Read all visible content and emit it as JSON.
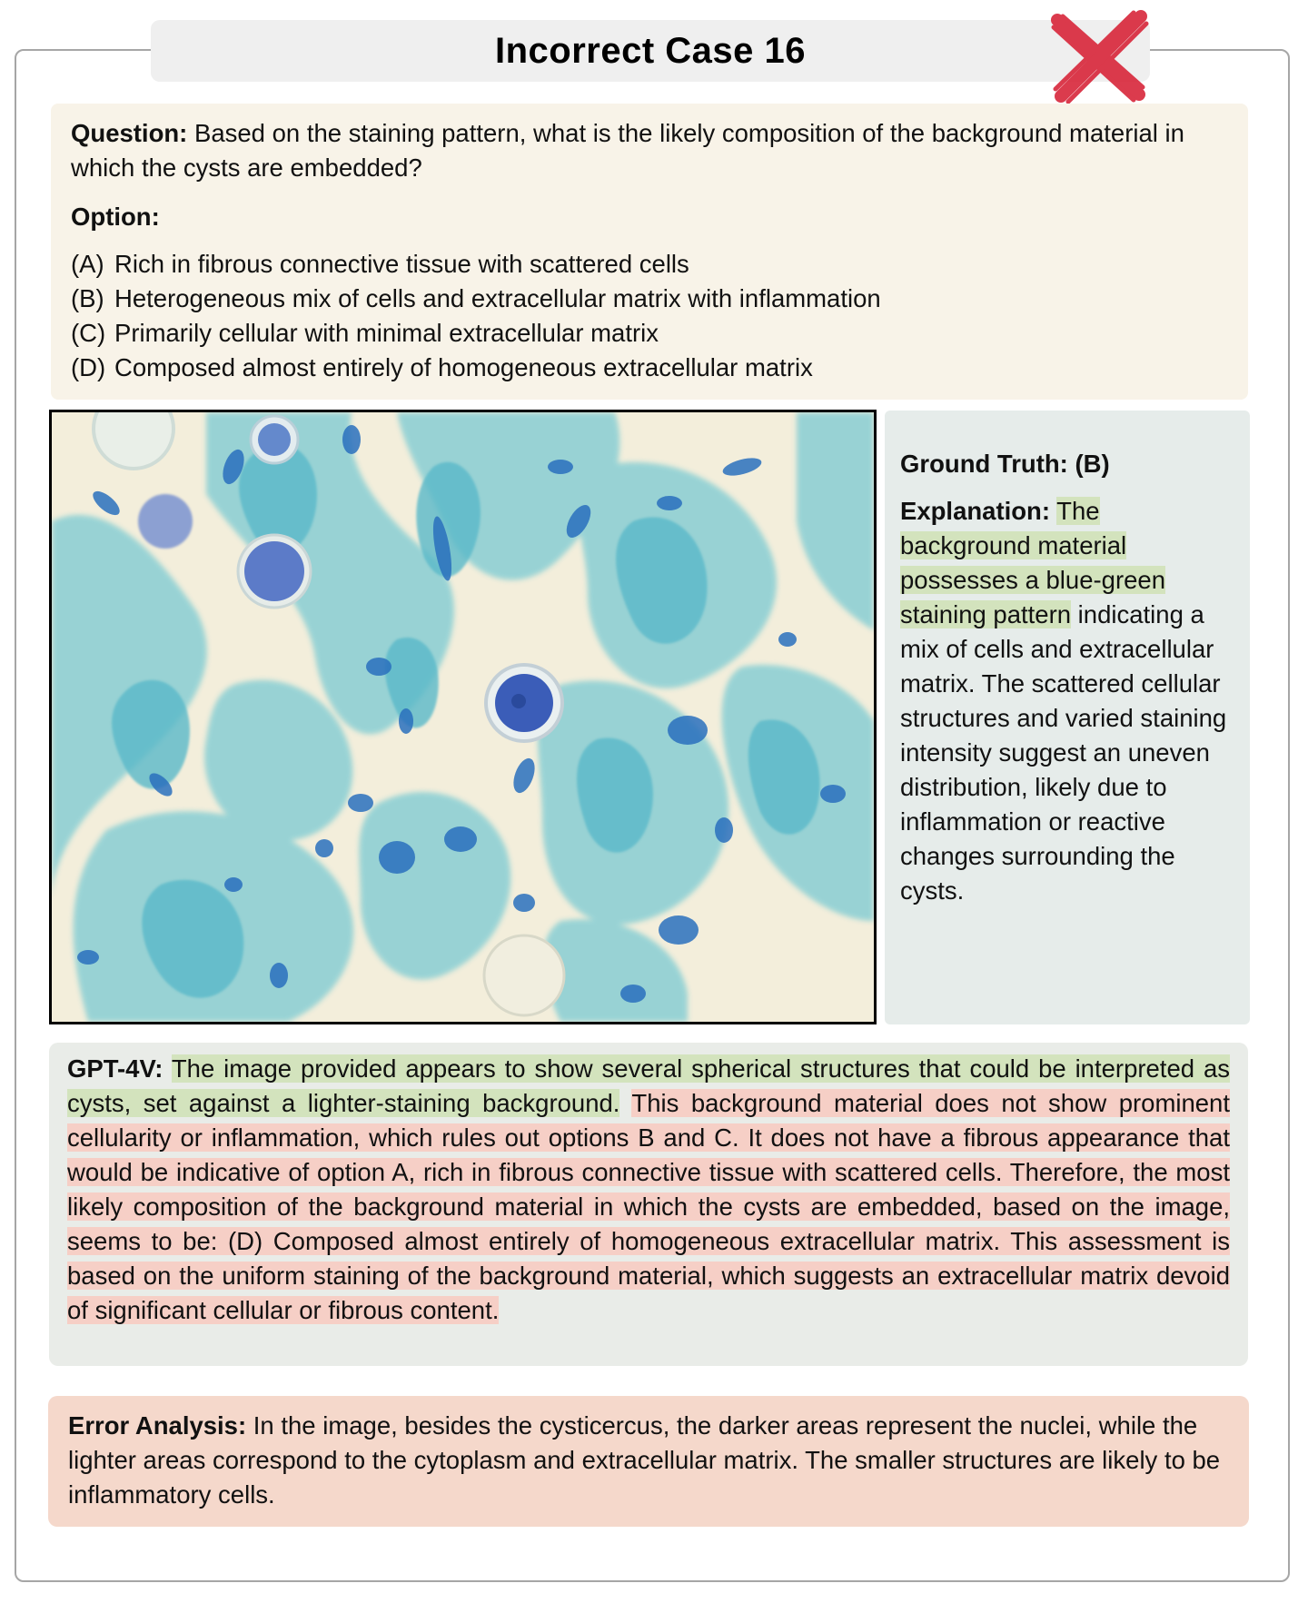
{
  "title": "Incorrect Case 16",
  "status_icon": "red-cross-icon",
  "colors": {
    "question_bg": "#f8f3e8",
    "truth_bg": "#e6ecea",
    "gpt_bg": "#e9ece8",
    "error_bg": "#f5d8cb",
    "highlight_green": "#d3e3bd",
    "highlight_red": "#f6cfc6",
    "cross_red": "#d8263a"
  },
  "question": {
    "label": "Question:",
    "text": " Based on the staining pattern, what is the likely composition of the background material in which the cysts are embedded?",
    "option_heading": "Option:",
    "options": [
      {
        "letter": "(A)",
        "text": "Rich in fibrous connective tissue with scattered cells"
      },
      {
        "letter": "(B)",
        "text": "Heterogeneous mix of cells and extracellular matrix with inflammation"
      },
      {
        "letter": "(C)",
        "text": "Primarily cellular with minimal extracellular matrix"
      },
      {
        "letter": "(D)",
        "text": "Composed almost entirely of homogeneous extracellular matrix"
      }
    ]
  },
  "image": {
    "subject": "histology micrograph, blue-green stained tissue with spherical cysts"
  },
  "ground_truth": {
    "label": "Ground Truth: (B)",
    "explanation_label": "Explanation:",
    "explanation_highlight": "The background material possesses a blue-green staining pattern",
    "explanation_rest": " indicating a mix of cells and extracellular matrix. The scattered cellular structures and varied staining intensity suggest an uneven distribution, likely due to inflammation or reactive changes surrounding the cysts."
  },
  "gpt": {
    "label": "GPT-4V:",
    "correct_part": "The image provided appears to show several spherical structures that could be interpreted as cysts, set against a lighter-staining background.",
    "incorrect_part": "This background material does not show prominent cellularity or inflammation, which rules out options B and C. It does not have a fibrous appearance that would be indicative of option A, rich in fibrous connective tissue with scattered cells. Therefore, the most likely composition of the background material in which the cysts are embedded, based on the image, seems to be: (D) Composed almost entirely of homogeneous extracellular matrix. This assessment is based on the uniform staining of the background material, which suggests an extracellular matrix devoid of significant cellular or fibrous content."
  },
  "error_analysis": {
    "label": "Error Analysis:",
    "text": " In the image, besides the cysticercus, the darker areas represent the nuclei, while the lighter areas correspond to the cytoplasm and extracellular matrix. The smaller structures are likely to be inflammatory cells."
  }
}
